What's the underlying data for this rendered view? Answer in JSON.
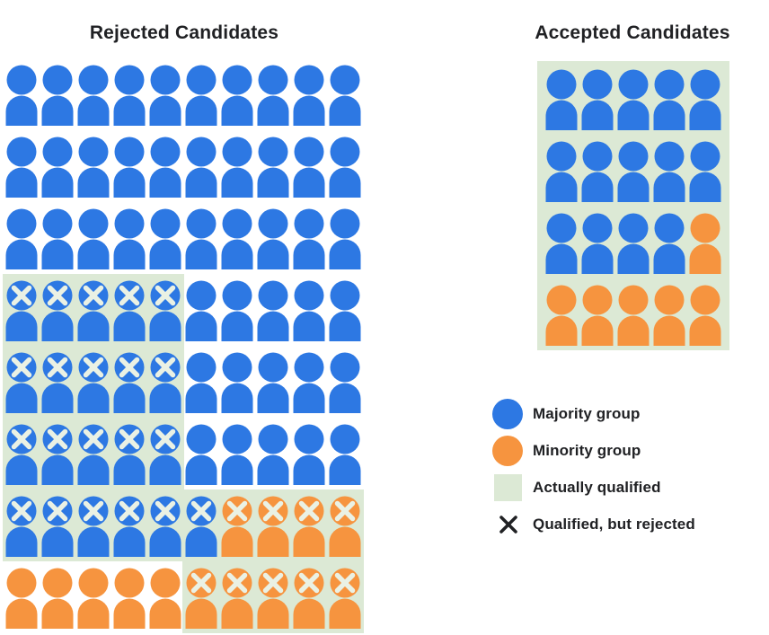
{
  "colors": {
    "majority": "#2d78e3",
    "minority": "#f6943f",
    "qualified_bg": "#dce9d5",
    "cross_on_person": "#eaf1e4",
    "legend_cross": "#202124",
    "text": "#202124"
  },
  "cell_codes": {
    "M": "majority",
    "m": "majority-qualified-but-rejected",
    "N": "minority",
    "n": "minority-qualified-but-rejected"
  },
  "charts": {
    "rejected": {
      "title": "Rejected Candidates",
      "rows": [
        "MMMMMMMMMM",
        "MMMMMMMMMM",
        "MMMMMMMMMM",
        "mmmmmMMMMM",
        "mmmmmMMMMM",
        "mmmmmMMMMM",
        "mmmmmmnnnn",
        "NNNNNnnnnn"
      ],
      "qualified_regions": [
        {
          "col": 0,
          "row": 3,
          "cols": 5,
          "rows": 3
        },
        {
          "col": 0,
          "row": 6,
          "cols": 10,
          "rows": 1
        },
        {
          "col": 5,
          "row": 7,
          "cols": 5,
          "rows": 1
        }
      ]
    },
    "accepted": {
      "title": "Accepted Candidates",
      "rows": [
        "MMMMM",
        "MMMMM",
        "MMMMN",
        "NNNNN"
      ],
      "qualified_regions": [
        {
          "col": 0,
          "row": 0,
          "cols": 5,
          "rows": 4
        }
      ]
    }
  },
  "legend": {
    "items": [
      {
        "icon": "majority-circle",
        "label": "Majority group"
      },
      {
        "icon": "minority-circle",
        "label": "Minority group"
      },
      {
        "icon": "qualified-square",
        "label": "Actually qualified"
      },
      {
        "icon": "rejected-cross",
        "label": "Qualified, but rejected"
      }
    ]
  },
  "chart_data": {
    "type": "pictogram",
    "title": "Hiring classifier outcomes by group",
    "panels": [
      {
        "title": "Rejected Candidates",
        "total_people": 80,
        "grid": "10 columns x 8 rows",
        "majority_rejected": 66,
        "minority_rejected": 14,
        "qualified_but_rejected_majority": 21,
        "qualified_but_rejected_minority": 9,
        "unqualified_rejected_majority": 45,
        "unqualified_rejected_minority": 5,
        "actually_qualified_total": 30
      },
      {
        "title": "Accepted Candidates",
        "total_people": 20,
        "grid": "5 columns x 4 rows",
        "majority_accepted": 14,
        "minority_accepted": 6,
        "all_actually_qualified": true
      }
    ],
    "legend_entries": [
      "Majority group",
      "Minority group",
      "Actually qualified",
      "Qualified, but rejected"
    ]
  }
}
